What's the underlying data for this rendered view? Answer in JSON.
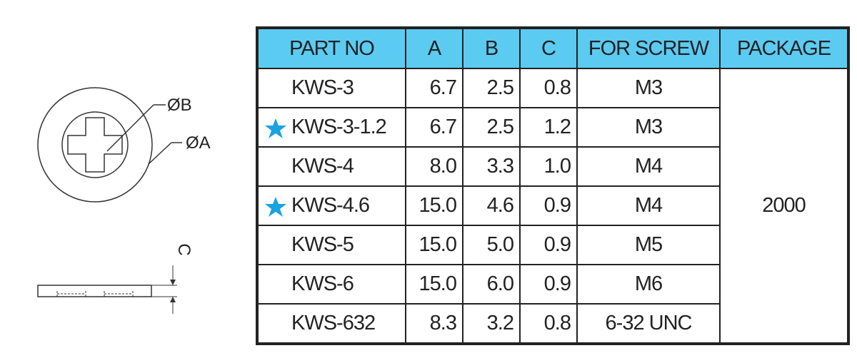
{
  "drawing": {
    "labels": [
      "ØB",
      "ØA",
      "C"
    ]
  },
  "table": {
    "header": [
      "PART NO",
      "A",
      "B",
      "C",
      "FOR SCREW",
      "PACKAGE"
    ],
    "rows": [
      [
        "KWS-3",
        "6.7",
        "2.5",
        "0.8",
        "M3"
      ],
      [
        "KWS-3-1.2",
        "6.7",
        "2.5",
        "1.2",
        "M3"
      ],
      [
        "KWS-4",
        "8.0",
        "3.3",
        "1.0",
        "M4"
      ],
      [
        "KWS-4.6",
        "15.0",
        "4.6",
        "0.9",
        "M4"
      ],
      [
        "KWS-5",
        "15.0",
        "5.0",
        "0.9",
        "M5"
      ],
      [
        "KWS-6",
        "15.0",
        "6.0",
        "0.9",
        "M6"
      ],
      [
        "KWS-632",
        "8.3",
        "3.2",
        "0.8",
        "6-32 UNC"
      ]
    ],
    "package": "2000"
  }
}
